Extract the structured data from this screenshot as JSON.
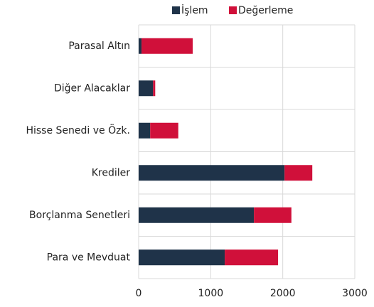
{
  "chart_data": {
    "type": "stacked_barh",
    "categories": [
      "Parasal Altın",
      "Diğer Alacaklar",
      "Hisse Senedi ve Özk.",
      "Krediler",
      "Borçlanma Senetleri",
      "Para ve Mevduat"
    ],
    "series": [
      {
        "name": "İşlem",
        "color": "#1f3349",
        "values": [
          40,
          200,
          160,
          2025,
          1600,
          1195
        ]
      },
      {
        "name": "Değerleme",
        "color": "#d0103a",
        "values": [
          710,
          30,
          390,
          385,
          520,
          740
        ]
      }
    ],
    "xlim": [
      0,
      3000
    ],
    "xticks": [
      0,
      1000,
      2000,
      3000
    ],
    "grid": true,
    "legend": "top"
  }
}
